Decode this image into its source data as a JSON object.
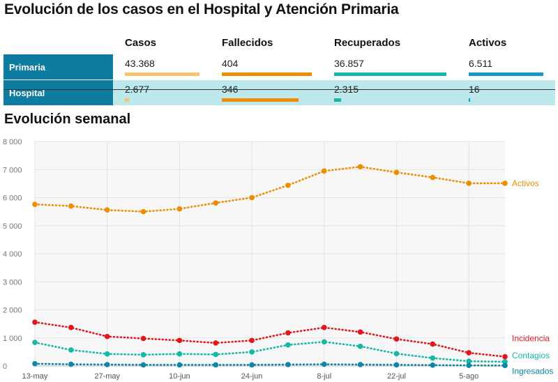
{
  "title": "Evolución de los casos en el Hospital y Atención Primaria",
  "table": {
    "headers": [
      "Casos",
      "Fallecidos",
      "Recuperados",
      "Activos"
    ],
    "colors": [
      "#f9c46b",
      "#f08c00",
      "#14b8a6",
      "#1298c9"
    ],
    "rows": [
      {
        "label": "Primaria",
        "values": [
          "43.368",
          "404",
          "36.857",
          "6.511"
        ],
        "fill": [
          1.0,
          1.0,
          1.0,
          1.0
        ]
      },
      {
        "label": "Hospital",
        "values": [
          "2.677",
          "346",
          "2.315",
          "16"
        ],
        "fill": [
          0.06,
          0.856,
          0.06,
          0.01
        ]
      }
    ]
  },
  "subtitle": "Evolución semanal",
  "chart_data": {
    "type": "line",
    "title": "Evolución semanal",
    "x": [
      "13-may",
      "20-may",
      "27-may",
      "3-jun",
      "10-jun",
      "17-jun",
      "24-jun",
      "1-jul",
      "8-jul",
      "15-jul",
      "22-jul",
      "29-jul",
      "5-ago",
      "12-ago"
    ],
    "x_tick_labels": [
      "13-may",
      "27-may",
      "10-jun",
      "24-jun",
      "8-jul",
      "22-jul",
      "5-ago"
    ],
    "x_tick_indices": [
      0,
      2,
      4,
      6,
      8,
      10,
      12
    ],
    "ylim": [
      0,
      8000
    ],
    "y_ticks": [
      0,
      1000,
      2000,
      3000,
      4000,
      5000,
      6000,
      7000,
      8000
    ],
    "y_tick_labels": [
      "0",
      "1 000",
      "2 000",
      "3 000",
      "4 000",
      "5 000",
      "6 000",
      "7 000",
      "8 000"
    ],
    "grid": true,
    "series": [
      {
        "name": "Activos",
        "color": "#f08c00",
        "values": [
          5760,
          5700,
          5560,
          5500,
          5600,
          5810,
          6000,
          6440,
          6950,
          7100,
          6900,
          6720,
          6510,
          6511
        ]
      },
      {
        "name": "Incidencia",
        "color": "#e3151a",
        "values": [
          1560,
          1370,
          1050,
          980,
          910,
          820,
          910,
          1180,
          1370,
          1210,
          960,
          780,
          470,
          330
        ]
      },
      {
        "name": "Contagios",
        "color": "#14b8a6",
        "values": [
          840,
          570,
          430,
          400,
          430,
          410,
          500,
          750,
          860,
          700,
          440,
          280,
          170,
          150
        ]
      },
      {
        "name": "Ingresados",
        "color": "#0e86a8",
        "values": [
          80,
          60,
          50,
          40,
          40,
          40,
          40,
          50,
          60,
          50,
          40,
          30,
          20,
          16
        ]
      }
    ]
  }
}
